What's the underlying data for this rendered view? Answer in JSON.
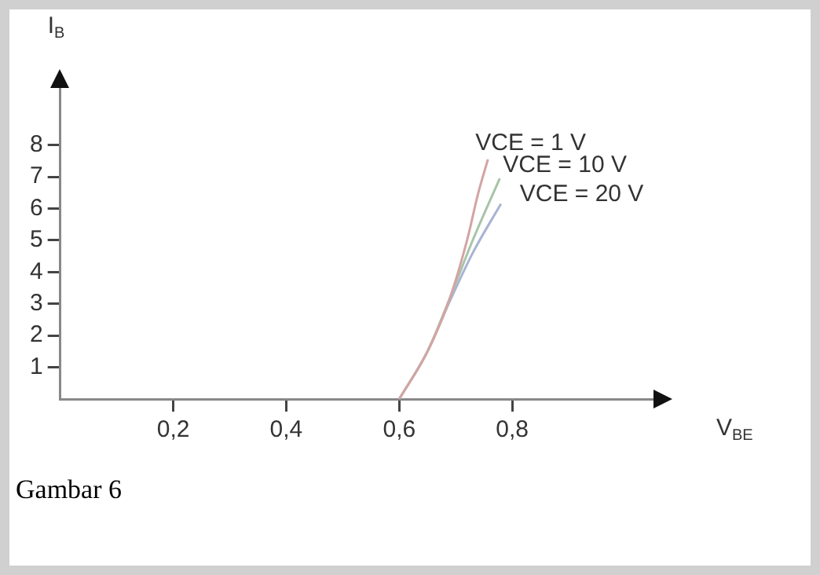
{
  "chart_data": {
    "type": "line",
    "xlabel": "V$_{BE}$",
    "ylabel": "I$_{B}$",
    "xlim": [
      0,
      1.05
    ],
    "ylim": [
      0,
      9.8
    ],
    "xticks": [
      {
        "value": 0.2,
        "label": "0,2"
      },
      {
        "value": 0.4,
        "label": "0,4"
      },
      {
        "value": 0.6,
        "label": "0,6"
      },
      {
        "value": 0.8,
        "label": "0,8"
      }
    ],
    "yticks": [
      1,
      2,
      3,
      4,
      5,
      6,
      7,
      8
    ],
    "grid": false,
    "legend": false,
    "marker": "none",
    "line_style": "solid",
    "series": [
      {
        "name": "VCE = 1 V",
        "color": "#d4a4a4",
        "x": [
          0.6,
          0.65,
          0.69,
          0.72,
          0.74,
          0.757
        ],
        "values": [
          0,
          1.5,
          3.2,
          5,
          6.5,
          7.55
        ]
      },
      {
        "name": "VCE = 10 V",
        "color": "#a8c4a8",
        "x": [
          0.6,
          0.65,
          0.69,
          0.73,
          0.778
        ],
        "values": [
          0,
          1.5,
          3.2,
          5,
          6.95
        ]
      },
      {
        "name": "VCE = 20 V",
        "color": "#a8b4d4",
        "x": [
          0.6,
          0.65,
          0.69,
          0.73,
          0.78
        ],
        "values": [
          0,
          1.5,
          3.1,
          4.6,
          6.15
        ]
      }
    ],
    "annotations": [
      "Gambar 6"
    ]
  }
}
